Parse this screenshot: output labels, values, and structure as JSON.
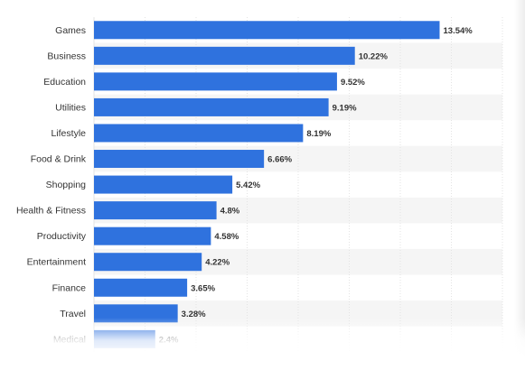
{
  "chart_data": {
    "type": "bar",
    "orientation": "horizontal",
    "categories": [
      "Games",
      "Business",
      "Education",
      "Utilities",
      "Lifestyle",
      "Food & Drink",
      "Shopping",
      "Health & Fitness",
      "Productivity",
      "Entertainment",
      "Finance",
      "Travel",
      "Medical"
    ],
    "values": [
      13.54,
      10.22,
      9.52,
      9.19,
      8.19,
      6.66,
      5.42,
      4.8,
      4.58,
      4.22,
      3.65,
      3.28,
      2.4
    ],
    "value_labels": [
      "13.54%",
      "10.22%",
      "9.52%",
      "9.19%",
      "8.19%",
      "6.66%",
      "5.42%",
      "4.8%",
      "4.58%",
      "4.22%",
      "3.65%",
      "3.28%",
      "2.4%"
    ],
    "xlim": [
      0,
      16
    ],
    "grid": true,
    "bar_color": "#2f72de",
    "title": "",
    "xlabel": "",
    "ylabel": ""
  }
}
